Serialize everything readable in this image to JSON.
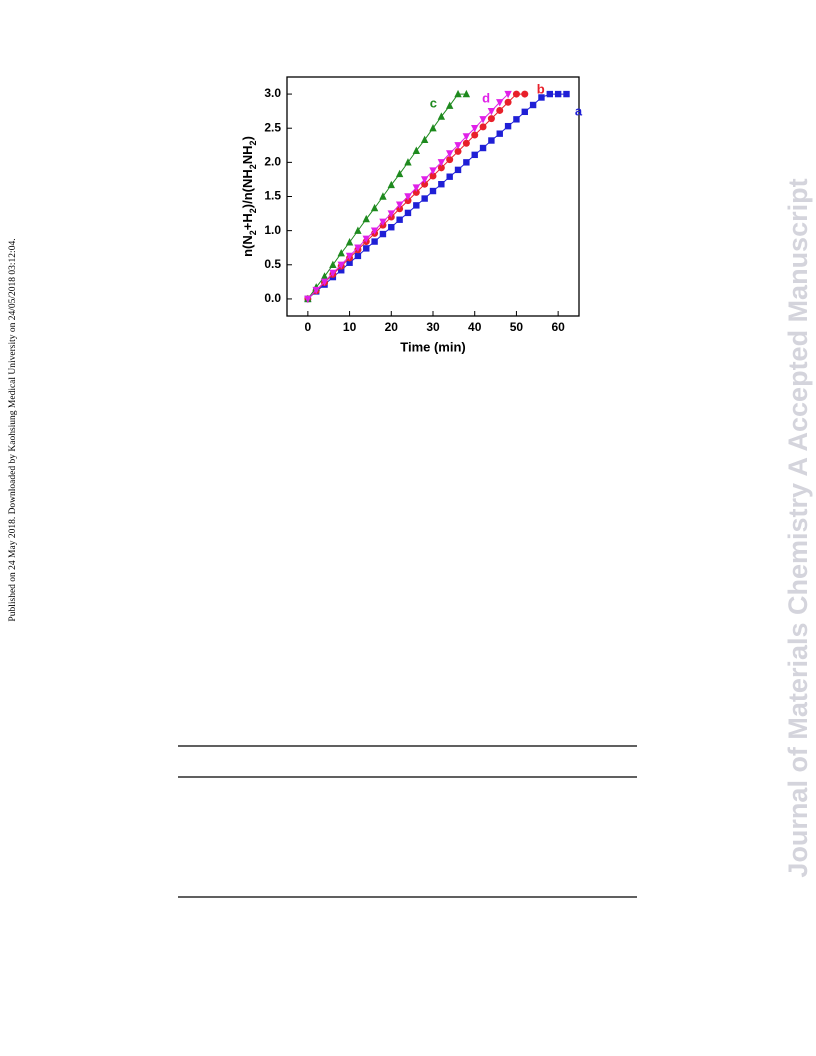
{
  "side_note": "Published on 24 May 2018. Downloaded by Kaohsiung Medical University on 24/05/2018 03:12:04.",
  "watermark": "Journal of Materials Chemistry A Accepted Manuscript",
  "chart_data": {
    "type": "line",
    "x_label": "Time (min)",
    "y_label": [
      "n(N",
      "2",
      "+H",
      "2",
      ")/n(NH",
      "2",
      "NH",
      "2",
      ")"
    ],
    "xlim": [
      -5,
      65
    ],
    "xticks": [
      0,
      10,
      20,
      30,
      40,
      50,
      60
    ],
    "ylim": [
      -0.25,
      3.25
    ],
    "yticks": [
      {
        "value": 0,
        "label": "0.0"
      },
      0.5,
      {
        "value": 1,
        "label": "1.0"
      },
      1.5,
      {
        "value": 2,
        "label": "2.0"
      },
      2.5,
      {
        "value": 3,
        "label": "3.0"
      }
    ],
    "series": [
      {
        "name": "a",
        "color": "#1f1fd6",
        "marker": "square",
        "x": [
          0,
          2,
          4,
          6,
          8,
          10,
          12,
          14,
          16,
          18,
          20,
          22,
          24,
          26,
          28,
          30,
          32,
          34,
          36,
          38,
          40,
          42,
          44,
          46,
          48,
          50,
          52,
          54,
          56,
          58,
          60,
          62
        ],
        "values": [
          0,
          0.11,
          0.21,
          0.32,
          0.42,
          0.53,
          0.63,
          0.74,
          0.84,
          0.95,
          1.05,
          1.16,
          1.26,
          1.37,
          1.47,
          1.58,
          1.68,
          1.79,
          1.89,
          2.0,
          2.11,
          2.21,
          2.32,
          2.42,
          2.53,
          2.63,
          2.74,
          2.84,
          2.95,
          3.0,
          3.0,
          3.0
        ]
      },
      {
        "name": "b",
        "color": "#e8202a",
        "marker": "circle",
        "x": [
          0,
          2,
          4,
          6,
          8,
          10,
          12,
          14,
          16,
          18,
          20,
          22,
          24,
          26,
          28,
          30,
          32,
          34,
          36,
          38,
          40,
          42,
          44,
          46,
          48,
          50,
          52
        ],
        "values": [
          0,
          0.12,
          0.24,
          0.36,
          0.48,
          0.6,
          0.72,
          0.84,
          0.96,
          1.08,
          1.2,
          1.32,
          1.44,
          1.56,
          1.68,
          1.8,
          1.92,
          2.04,
          2.16,
          2.28,
          2.4,
          2.52,
          2.64,
          2.76,
          2.88,
          3.0,
          3.0
        ]
      },
      {
        "name": "c",
        "color": "#1e8a1e",
        "marker": "triangle-up",
        "x": [
          0,
          2,
          4,
          6,
          8,
          10,
          12,
          14,
          16,
          18,
          20,
          22,
          24,
          26,
          28,
          30,
          32,
          34,
          36,
          38
        ],
        "values": [
          0,
          0.17,
          0.33,
          0.5,
          0.67,
          0.83,
          1.0,
          1.17,
          1.33,
          1.5,
          1.67,
          1.83,
          2.0,
          2.17,
          2.33,
          2.5,
          2.67,
          2.83,
          3.0,
          3.0
        ]
      },
      {
        "name": "d",
        "color": "#e020e8",
        "marker": "triangle-down",
        "x": [
          0,
          2,
          4,
          6,
          8,
          10,
          12,
          14,
          16,
          18,
          20,
          22,
          24,
          26,
          28,
          30,
          32,
          34,
          36,
          38,
          40,
          42,
          44,
          46,
          48
        ],
        "values": [
          0,
          0.13,
          0.25,
          0.38,
          0.5,
          0.63,
          0.75,
          0.88,
          1.0,
          1.13,
          1.25,
          1.38,
          1.5,
          1.63,
          1.75,
          1.88,
          2.0,
          2.13,
          2.25,
          2.38,
          2.5,
          2.63,
          2.75,
          2.88,
          3.0
        ]
      }
    ]
  }
}
